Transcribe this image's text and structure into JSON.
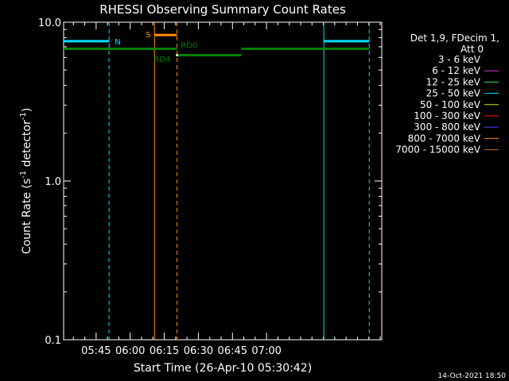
{
  "chart_data": {
    "type": "line",
    "title": "RHESSI Observing Summary Count Rates",
    "xlabel": "Start Time (26-Apr-10 05:30:42)",
    "ylabel_main": "Count Rate (s",
    "ylabel_sup1": "-1",
    "ylabel_mid": " detector",
    "ylabel_sup2": "-1",
    "ylabel_end": ")",
    "y_scale": "log",
    "ylim": [
      0.1,
      10.0
    ],
    "xlim_minutes": [
      0,
      140
    ],
    "x_ticks": [
      {
        "minute": 14.3,
        "label": "05:45"
      },
      {
        "minute": 29.3,
        "label": "06:00"
      },
      {
        "minute": 44.3,
        "label": "06:15"
      },
      {
        "minute": 59.3,
        "label": "06:30"
      },
      {
        "minute": 74.3,
        "label": "06:45"
      },
      {
        "minute": 89.3,
        "label": "07:00"
      }
    ],
    "y_ticks": [
      {
        "value": 0.1,
        "label": "0.1"
      },
      {
        "value": 1.0,
        "label": "1.0"
      },
      {
        "value": 10.0,
        "label": "10.0"
      }
    ],
    "legend": {
      "position": "right",
      "header_line1": "Det 1,9, FDecim 1,",
      "header_line2": "Att 0",
      "entries": [
        {
          "label": "3 - 6 keV",
          "color": "#000000"
        },
        {
          "label": "6 - 12 keV",
          "color": "#d040d0"
        },
        {
          "label": "12 - 25 keV",
          "color": "#40e040"
        },
        {
          "label": "25 - 50 keV",
          "color": "#00e0ff"
        },
        {
          "label": "50 - 100 keV",
          "color": "#e0e000"
        },
        {
          "label": "100 - 300 keV",
          "color": "#ff2020"
        },
        {
          "label": "300 - 800 keV",
          "color": "#4040ff"
        },
        {
          "label": "800 - 7000 keV",
          "color": "#ff8c00"
        },
        {
          "label": "7000 - 15000 keV",
          "color": "#c07010"
        }
      ]
    },
    "series": [
      {
        "name": "cyan-flag-segment-1",
        "color": "#00e0ff",
        "points": [
          [
            0,
            7.6
          ],
          [
            20,
            7.6
          ]
        ]
      },
      {
        "name": "cyan-flag-segment-2",
        "color": "#00e0ff",
        "points": [
          [
            114.5,
            7.6
          ],
          [
            134.5,
            7.6
          ]
        ]
      },
      {
        "name": "saa-flag-segment",
        "color": "#ff8c00",
        "points": [
          [
            40,
            8.3
          ],
          [
            49.9,
            8.3
          ]
        ]
      },
      {
        "name": "green-flag-segment-1",
        "color": "#008000",
        "points": [
          [
            0,
            6.8
          ],
          [
            49.9,
            6.8
          ]
        ]
      },
      {
        "name": "green-flag-segment-2",
        "color": "#008000",
        "points": [
          [
            49.9,
            6.2
          ],
          [
            78.2,
            6.2
          ]
        ]
      },
      {
        "name": "green-flag-segment-3",
        "color": "#008000",
        "points": [
          [
            78.2,
            6.8
          ],
          [
            134.5,
            6.8
          ]
        ]
      }
    ],
    "vlines": [
      {
        "minute": 20,
        "color": "#00e0ff",
        "style": "dashed"
      },
      {
        "minute": 114.5,
        "color": "#00e0ff",
        "style": "solid"
      },
      {
        "minute": 134.5,
        "color": "#00e0ff",
        "style": "dashed"
      },
      {
        "minute": 40,
        "color": "#ff8c00",
        "style": "solid"
      },
      {
        "minute": 49.9,
        "color": "#ff8c00",
        "style": "dashed"
      }
    ],
    "annotations": [
      {
        "text": "N",
        "minute": 22.5,
        "value": 7.6,
        "color": "#00e0ff"
      },
      {
        "text": "S",
        "minute": 36.2,
        "value": 8.4,
        "color": "#ff8c00"
      },
      {
        "text": "RD0",
        "minute": 51.5,
        "value": 7.2,
        "color": "#008000"
      },
      {
        "text": "RD4",
        "minute": 39.7,
        "value": 5.9,
        "color": "#008000"
      }
    ],
    "timestamp": "14-Oct-2021 18:50"
  }
}
